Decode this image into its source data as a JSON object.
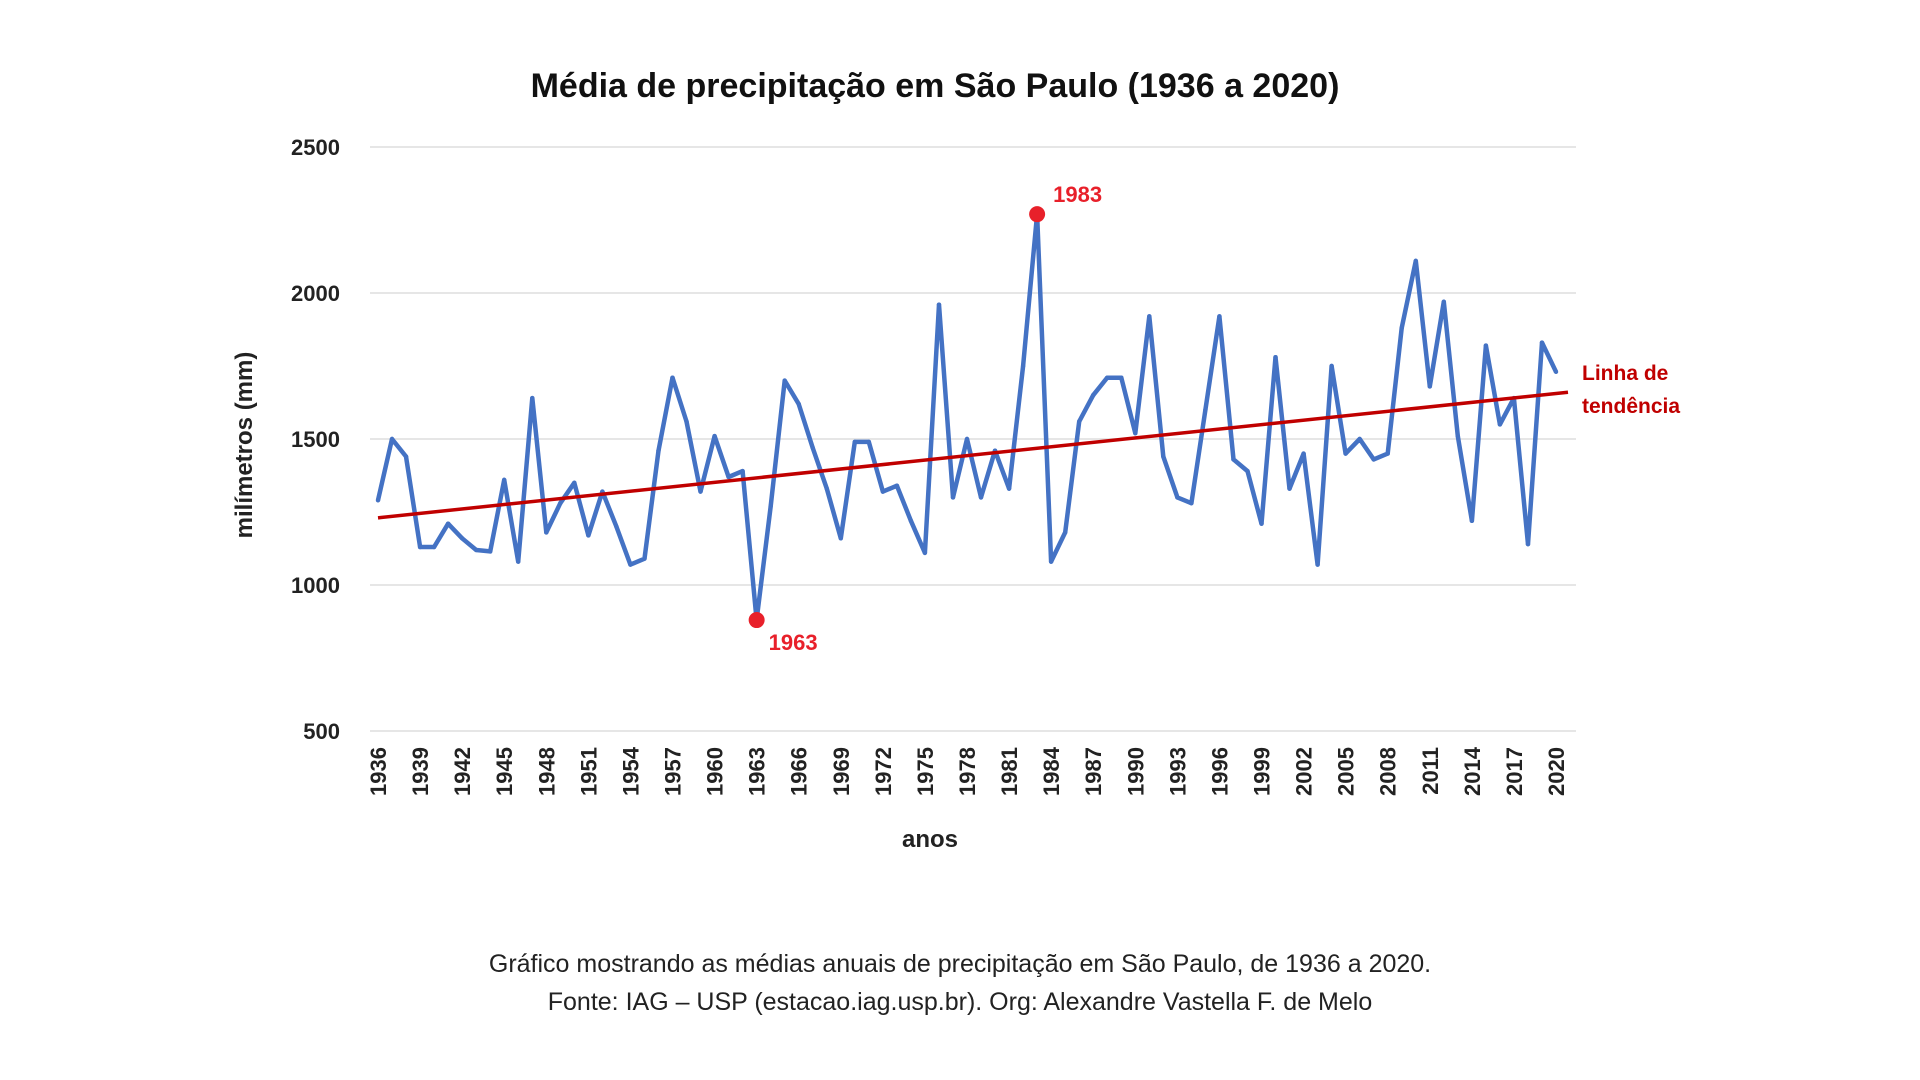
{
  "chart_data": {
    "type": "line",
    "title": "Média de precipitação em São Paulo (1936 a 2020)",
    "xlabel": "anos",
    "ylabel": "milímetros (mm)",
    "ylim": [
      500,
      2500
    ],
    "yticks": [
      500,
      1000,
      1500,
      2000,
      2500
    ],
    "xticks": [
      1936,
      1939,
      1942,
      1945,
      1948,
      1951,
      1954,
      1957,
      1960,
      1963,
      1966,
      1969,
      1972,
      1975,
      1978,
      1981,
      1984,
      1987,
      1990,
      1993,
      1996,
      1999,
      2002,
      2005,
      2008,
      2011,
      2014,
      2017,
      2020
    ],
    "grid": true,
    "x_start": 1936,
    "series": [
      {
        "color": "#4472c4",
        "values": [
          1290,
          1500,
          1440,
          1130,
          1130,
          1210,
          1160,
          1120,
          1115,
          1360,
          1080,
          1640,
          1180,
          1280,
          1350,
          1170,
          1320,
          1200,
          1070,
          1090,
          1460,
          1710,
          1560,
          1320,
          1510,
          1370,
          1390,
          880,
          1270,
          1700,
          1620,
          1470,
          1330,
          1160,
          1490,
          1490,
          1320,
          1340,
          1220,
          1110,
          1960,
          1300,
          1500,
          1300,
          1460,
          1330,
          1750,
          2270,
          1080,
          1180,
          1560,
          1650,
          1710,
          1710,
          1520,
          1920,
          1440,
          1300,
          1280,
          1600,
          1920,
          1430,
          1390,
          1210,
          1780,
          1330,
          1450,
          1070,
          1750,
          1450,
          1500,
          1430,
          1450,
          1880,
          2110,
          1680,
          1970,
          1510,
          1220,
          1820,
          1550,
          1640,
          1140,
          1830,
          1730
        ]
      }
    ],
    "trendline": {
      "label_line1": "Linha de",
      "label_line2": "tendência",
      "color": "#c00000",
      "start": [
        1936,
        1230
      ],
      "end": [
        2020,
        1655
      ]
    },
    "annotations": [
      {
        "label": "1983",
        "x": 1983,
        "y": 2270,
        "color": "#e8202a"
      },
      {
        "label": "1963",
        "x": 1963,
        "y": 880,
        "color": "#e8202a"
      }
    ]
  },
  "caption": {
    "line1": "Gráfico mostrando as médias anuais de precipitação em São Paulo, de 1936 a 2020.",
    "line2": "Fonte: IAG – USP (estacao.iag.usp.br). Org: Alexandre Vastella F. de Melo"
  }
}
